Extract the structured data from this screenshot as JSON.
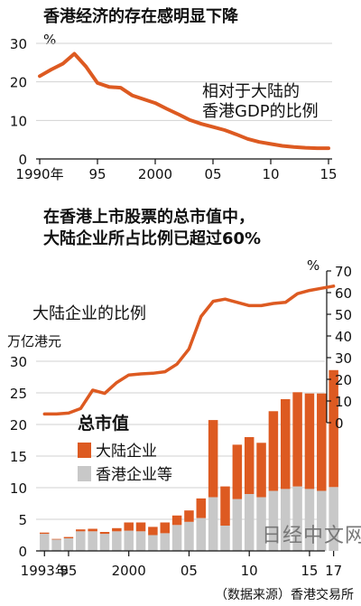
{
  "chart_data": [
    {
      "type": "line",
      "title": "香港经济的存在感明显下降",
      "annotation_lines": [
        "相对于大陆的",
        "香港GDP的比例"
      ],
      "y_unit": "%",
      "ylim": [
        0,
        30
      ],
      "yticks": [
        "0",
        "10",
        "20",
        "30"
      ],
      "xlim": [
        1990,
        2015
      ],
      "xtick_values": [
        1990,
        1995,
        2000,
        2005,
        2010,
        2015
      ],
      "xtick_labels": [
        "1990年",
        "95",
        "2000",
        "05",
        "10",
        "15"
      ],
      "color": "#dd5a21",
      "x": [
        1990,
        1991,
        1992,
        1993,
        1994,
        1995,
        1996,
        1997,
        1998,
        1999,
        2000,
        2001,
        2002,
        2003,
        2004,
        2005,
        2006,
        2007,
        2008,
        2009,
        2010,
        2011,
        2012,
        2013,
        2014,
        2015
      ],
      "values": [
        21.5,
        23.2,
        24.7,
        27.3,
        24.0,
        19.7,
        18.7,
        18.5,
        16.5,
        15.5,
        14.5,
        13.0,
        11.6,
        10.1,
        9.1,
        8.3,
        7.5,
        6.4,
        5.2,
        4.4,
        3.9,
        3.4,
        3.1,
        2.9,
        2.8,
        2.8
      ]
    },
    {
      "type": "bar_line",
      "title_lines": [
        "在香港上市股票的总市值中，",
        "大陆企业所占比例已超过60%"
      ],
      "left_axis_label": "万亿港元",
      "left_ylim": [
        0,
        30
      ],
      "left_yticks": [
        "0",
        "5",
        "10",
        "15",
        "20",
        "25",
        "30"
      ],
      "right_axis_label": "%",
      "right_ylim": [
        0,
        70
      ],
      "right_yticks": [
        "0",
        "10",
        "20",
        "30",
        "40",
        "50",
        "60",
        "70"
      ],
      "line_label": "大陆企业的比例",
      "legend_title": "总市值",
      "legend": [
        {
          "name": "大陆企业",
          "color": "#dd5a21"
        },
        {
          "name": "香港企业等",
          "color": "#c8c8c8"
        }
      ],
      "xtick_labels": [
        "1993年",
        "95",
        "2000",
        "05",
        "10",
        "15",
        "17"
      ],
      "categories": [
        1993,
        1994,
        1995,
        1996,
        1997,
        1998,
        1999,
        2000,
        2001,
        2002,
        2003,
        2004,
        2005,
        2006,
        2007,
        2008,
        2009,
        2010,
        2011,
        2012,
        2013,
        2014,
        2015,
        2016,
        2017
      ],
      "series": [
        {
          "name": "香港企业等",
          "color": "#c8c8c8",
          "values": [
            2.7,
            1.8,
            2.0,
            3.1,
            3.1,
            2.7,
            3.1,
            3.2,
            3.1,
            2.5,
            2.8,
            4.1,
            4.6,
            5.2,
            8.5,
            4.0,
            8.2,
            9.0,
            8.5,
            9.5,
            9.8,
            10.2,
            9.8,
            9.5,
            10.1
          ]
        },
        {
          "name": "大陆企业",
          "color": "#dd5a21",
          "values": [
            0.2,
            0.1,
            0.2,
            0.3,
            0.4,
            0.3,
            0.5,
            1.3,
            1.4,
            1.3,
            1.7,
            1.5,
            1.8,
            3.1,
            12.2,
            6.2,
            8.6,
            9.0,
            8.6,
            12.6,
            14.2,
            14.9,
            15.1,
            15.4,
            18.5
          ]
        },
        {
          "name": "大陆企业的比例",
          "color": "#dd5a21",
          "axis": "right",
          "values": [
            4.0,
            4.0,
            4.4,
            6.5,
            15.0,
            13.5,
            18.5,
            22.0,
            22.5,
            22.8,
            23.5,
            27.0,
            34.0,
            49.0,
            56.0,
            57.0,
            55.5,
            54.0,
            54.0,
            55.0,
            55.5,
            59.5,
            61.0,
            62.0,
            63.0
          ]
        }
      ]
    }
  ],
  "watermark": "日经中文网",
  "source_note": "（数据来源）香港交易所"
}
